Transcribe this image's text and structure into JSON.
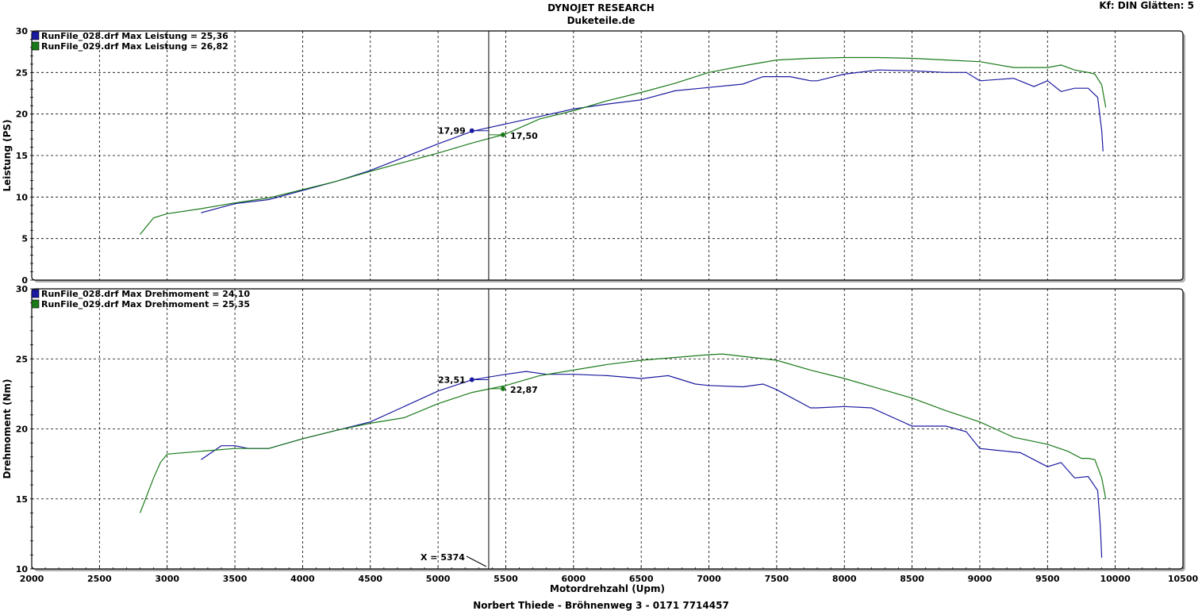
{
  "header": {
    "title": "DYNOJET RESEARCH",
    "subtitle": "Duketeile.de",
    "settings": "Kf: DIN  Glätten: 5",
    "footer": "Norbert Thiede - Bröhnenweg 3 - 0171 7714457"
  },
  "colors": {
    "run028": "#1a1aa0",
    "run029": "#1a7a1a",
    "grid": "#000000",
    "frame": "#000000"
  },
  "cursor": {
    "x": 5374,
    "label": "X = 5374"
  },
  "chart_data": [
    {
      "type": "line",
      "ylabel": "Leistung (PS)",
      "xlabel": "",
      "xlim": [
        2000,
        10500
      ],
      "ylim": [
        0,
        30
      ],
      "yticks": [
        0,
        5,
        10,
        15,
        20,
        25,
        30
      ],
      "grid": true,
      "legend_position": "top-left",
      "legend": [
        "RunFile_028.drf Max Leistung = 25,36",
        "RunFile_029.drf Max Leistung = 26,82"
      ],
      "markers": [
        {
          "series": 0,
          "x": 5250,
          "y": 17.99,
          "label": "17,99",
          "side": "left"
        },
        {
          "series": 1,
          "x": 5480,
          "y": 17.5,
          "label": "17,50",
          "side": "right"
        }
      ],
      "series": [
        {
          "name": "RunFile_028.drf",
          "color": "#1a1aa0",
          "x": [
            3250,
            3500,
            3750,
            4000,
            4250,
            4500,
            4750,
            5000,
            5250,
            5500,
            5750,
            6000,
            6250,
            6500,
            6750,
            7000,
            7250,
            7400,
            7500,
            7600,
            7750,
            7800,
            8000,
            8250,
            8500,
            8750,
            8900,
            9000,
            9250,
            9400,
            9500,
            9600,
            9700,
            9800,
            9870,
            9900,
            9910
          ],
          "y": [
            8.1,
            9.2,
            9.7,
            10.8,
            11.9,
            13.2,
            14.8,
            16.4,
            17.9,
            18.8,
            19.7,
            20.6,
            21.2,
            21.7,
            22.8,
            23.2,
            23.6,
            24.5,
            24.5,
            24.5,
            24.0,
            24.0,
            24.8,
            25.3,
            25.2,
            25.0,
            25.0,
            24.0,
            24.3,
            23.3,
            24.0,
            22.7,
            23.1,
            23.1,
            22.0,
            18.0,
            15.5
          ]
        },
        {
          "name": "RunFile_029.drf",
          "color": "#1a7a1a",
          "x": [
            2800,
            2900,
            3000,
            3250,
            3500,
            3750,
            4000,
            4250,
            4500,
            4750,
            5000,
            5250,
            5500,
            5750,
            6000,
            6250,
            6500,
            6750,
            7000,
            7250,
            7500,
            7750,
            8000,
            8250,
            8500,
            8750,
            9000,
            9250,
            9500,
            9600,
            9700,
            9800,
            9850,
            9900,
            9930
          ],
          "y": [
            5.5,
            7.5,
            8.0,
            8.6,
            9.3,
            9.9,
            10.9,
            11.9,
            13.1,
            14.2,
            15.3,
            16.5,
            17.6,
            19.4,
            20.4,
            21.6,
            22.6,
            23.7,
            25.0,
            25.8,
            26.5,
            26.7,
            26.8,
            26.8,
            26.7,
            26.5,
            26.3,
            25.6,
            25.6,
            25.9,
            25.3,
            25.0,
            24.8,
            23.5,
            20.8
          ]
        }
      ]
    },
    {
      "type": "line",
      "ylabel": "Drehmoment (Nm)",
      "xlabel": "Motordrehzahl (Upm)",
      "xlim": [
        2000,
        10500
      ],
      "ylim": [
        10,
        30
      ],
      "yticks": [
        10,
        15,
        20,
        25,
        30
      ],
      "xticks": [
        2000,
        2500,
        3000,
        3500,
        4000,
        4500,
        5000,
        5500,
        6000,
        6500,
        7000,
        7500,
        8000,
        8500,
        9000,
        9500,
        10000,
        10500
      ],
      "grid": true,
      "legend_position": "top-left",
      "legend": [
        "RunFile_028.drf Max Drehmoment = 24,10",
        "RunFile_029.drf Max Drehmoment = 25,35"
      ],
      "markers": [
        {
          "series": 0,
          "x": 5250,
          "y": 23.51,
          "label": "23,51",
          "side": "left"
        },
        {
          "series": 1,
          "x": 5480,
          "y": 22.87,
          "label": "22,87",
          "side": "right"
        }
      ],
      "series": [
        {
          "name": "RunFile_028.drf",
          "color": "#1a1aa0",
          "x": [
            3250,
            3400,
            3500,
            3600,
            3750,
            4000,
            4250,
            4500,
            4750,
            5000,
            5250,
            5500,
            5650,
            5800,
            6000,
            6250,
            6500,
            6700,
            6900,
            7000,
            7250,
            7400,
            7500,
            7750,
            7800,
            8000,
            8200,
            8500,
            8750,
            8900,
            9000,
            9100,
            9300,
            9500,
            9600,
            9700,
            9800,
            9870,
            9890,
            9900
          ],
          "y": [
            17.8,
            18.8,
            18.8,
            18.6,
            18.6,
            19.3,
            19.9,
            20.5,
            21.6,
            22.7,
            23.5,
            23.9,
            24.1,
            23.9,
            23.9,
            23.8,
            23.6,
            23.8,
            23.2,
            23.1,
            23.0,
            23.2,
            22.8,
            21.5,
            21.5,
            21.6,
            21.5,
            20.2,
            20.2,
            19.8,
            18.6,
            18.5,
            18.3,
            17.3,
            17.6,
            16.5,
            16.6,
            15.6,
            13.0,
            10.8
          ]
        },
        {
          "name": "RunFile_029.drf",
          "color": "#1a7a1a",
          "x": [
            2800,
            2900,
            2950,
            3000,
            3250,
            3500,
            3750,
            4000,
            4250,
            4500,
            4750,
            5000,
            5250,
            5500,
            5750,
            6000,
            6250,
            6500,
            6750,
            7000,
            7100,
            7500,
            7750,
            8000,
            8250,
            8500,
            8750,
            9000,
            9250,
            9500,
            9650,
            9750,
            9800,
            9850,
            9900,
            9930
          ],
          "y": [
            14.0,
            16.5,
            17.6,
            18.2,
            18.4,
            18.6,
            18.6,
            19.3,
            19.9,
            20.4,
            20.8,
            21.8,
            22.6,
            23.1,
            23.8,
            24.2,
            24.6,
            24.9,
            25.1,
            25.3,
            25.35,
            24.9,
            24.2,
            23.6,
            22.9,
            22.2,
            21.3,
            20.5,
            19.4,
            18.9,
            18.4,
            17.9,
            17.9,
            17.8,
            16.5,
            15.0
          ]
        }
      ]
    }
  ]
}
